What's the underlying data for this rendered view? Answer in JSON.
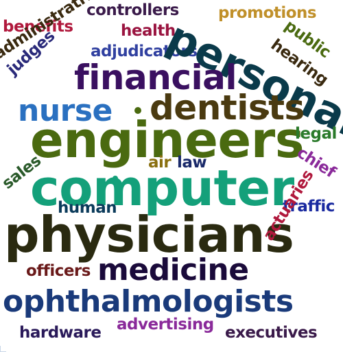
{
  "words": {
    "benefits": {
      "text": "benefits",
      "color": "#b0183c"
    },
    "controllers": {
      "text": "controllers",
      "color": "#3a1a4a"
    },
    "promotions": {
      "text": "promotions",
      "color": "#c0902a"
    },
    "health": {
      "text": "health",
      "color": "#9a1440"
    },
    "administrative": {
      "text": "administrative",
      "color": "#3a2a10"
    },
    "judges": {
      "text": "judges",
      "color": "#2a2a7a"
    },
    "adjudicators": {
      "text": "adjudicators",
      "color": "#3040a0"
    },
    "personal": {
      "text": "personal",
      "color": "#0a3a4a"
    },
    "public": {
      "text": "public",
      "color": "#4a6a10"
    },
    "hearing": {
      "text": "hearing",
      "color": "#3a2a10"
    },
    "financial": {
      "text": "financial",
      "color": "#3a1060"
    },
    "nurse": {
      "text": "nurse",
      "color": "#2a70c0"
    },
    "dentists": {
      "text": "dentists",
      "color": "#4a3a10"
    },
    "engineers": {
      "text": "engineers",
      "color": "#4a6a10"
    },
    "legal": {
      "text": "legal",
      "color": "#2a7a2a"
    },
    "chief": {
      "text": "chief",
      "color": "#8a2a9a"
    },
    "sales": {
      "text": "sales",
      "color": "#2a5a2a"
    },
    "air": {
      "text": "air",
      "color": "#8a7010"
    },
    "law": {
      "text": "law",
      "color": "#1a2a6a"
    },
    "computer": {
      "text": "computer",
      "color": "#14a07a"
    },
    "human": {
      "text": "human",
      "color": "#0a3a5a"
    },
    "traffic": {
      "text": "traffic",
      "color": "#1a2aa0"
    },
    "physicians": {
      "text": "physicians",
      "color": "#2a2a10"
    },
    "actuaries": {
      "text": "actuaries",
      "color": "#b0183c"
    },
    "officers": {
      "text": "officers",
      "color": "#6a1a1a"
    },
    "medicine": {
      "text": "medicine",
      "color": "#1a0a3a"
    },
    "ophthalmologists": {
      "text": "ophthalmologists",
      "color": "#1a3a7a"
    },
    "advertising": {
      "text": "advertising",
      "color": "#8a2a9a"
    },
    "hardware": {
      "text": "hardware",
      "color": "#2a1a5a"
    },
    "executives": {
      "text": "executives",
      "color": "#3a1a4a"
    }
  },
  "dots": {
    "d1": {
      "color": "#4a6a10"
    },
    "d2": {
      "color": "#14a07a"
    },
    "d3": {
      "color": "#4a3a10"
    }
  }
}
